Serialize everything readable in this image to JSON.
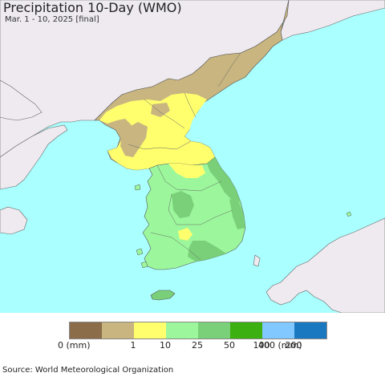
{
  "header": {
    "title": "Precipitation 10-Day (WMO)",
    "subtitle": "Mar. 1 - 10, 2025 [final]"
  },
  "colors": {
    "sea": "#aaffff",
    "land_outside": "#eeeaf0",
    "c_0": "#8c6d4a",
    "c_1": "#c8b580",
    "c_10": "#ffff6e",
    "c_25": "#9cf79c",
    "c_50": "#79d079",
    "c_100": "#3cb010",
    "c_200": "#80c8ff",
    "c_400": "#1a78c0",
    "border": "#555555"
  },
  "legend": {
    "colors": [
      "#8c6d4a",
      "#c8b580",
      "#ffff6e",
      "#9cf79c",
      "#79d079",
      "#3cb010",
      "#80c8ff",
      "#1a78c0"
    ],
    "labels": [
      "0 (mm)",
      "1",
      "10",
      "25",
      "50",
      "100",
      "200",
      "400 (mm)"
    ]
  },
  "footer": {
    "source": "Source: World Meteorological Organization"
  }
}
